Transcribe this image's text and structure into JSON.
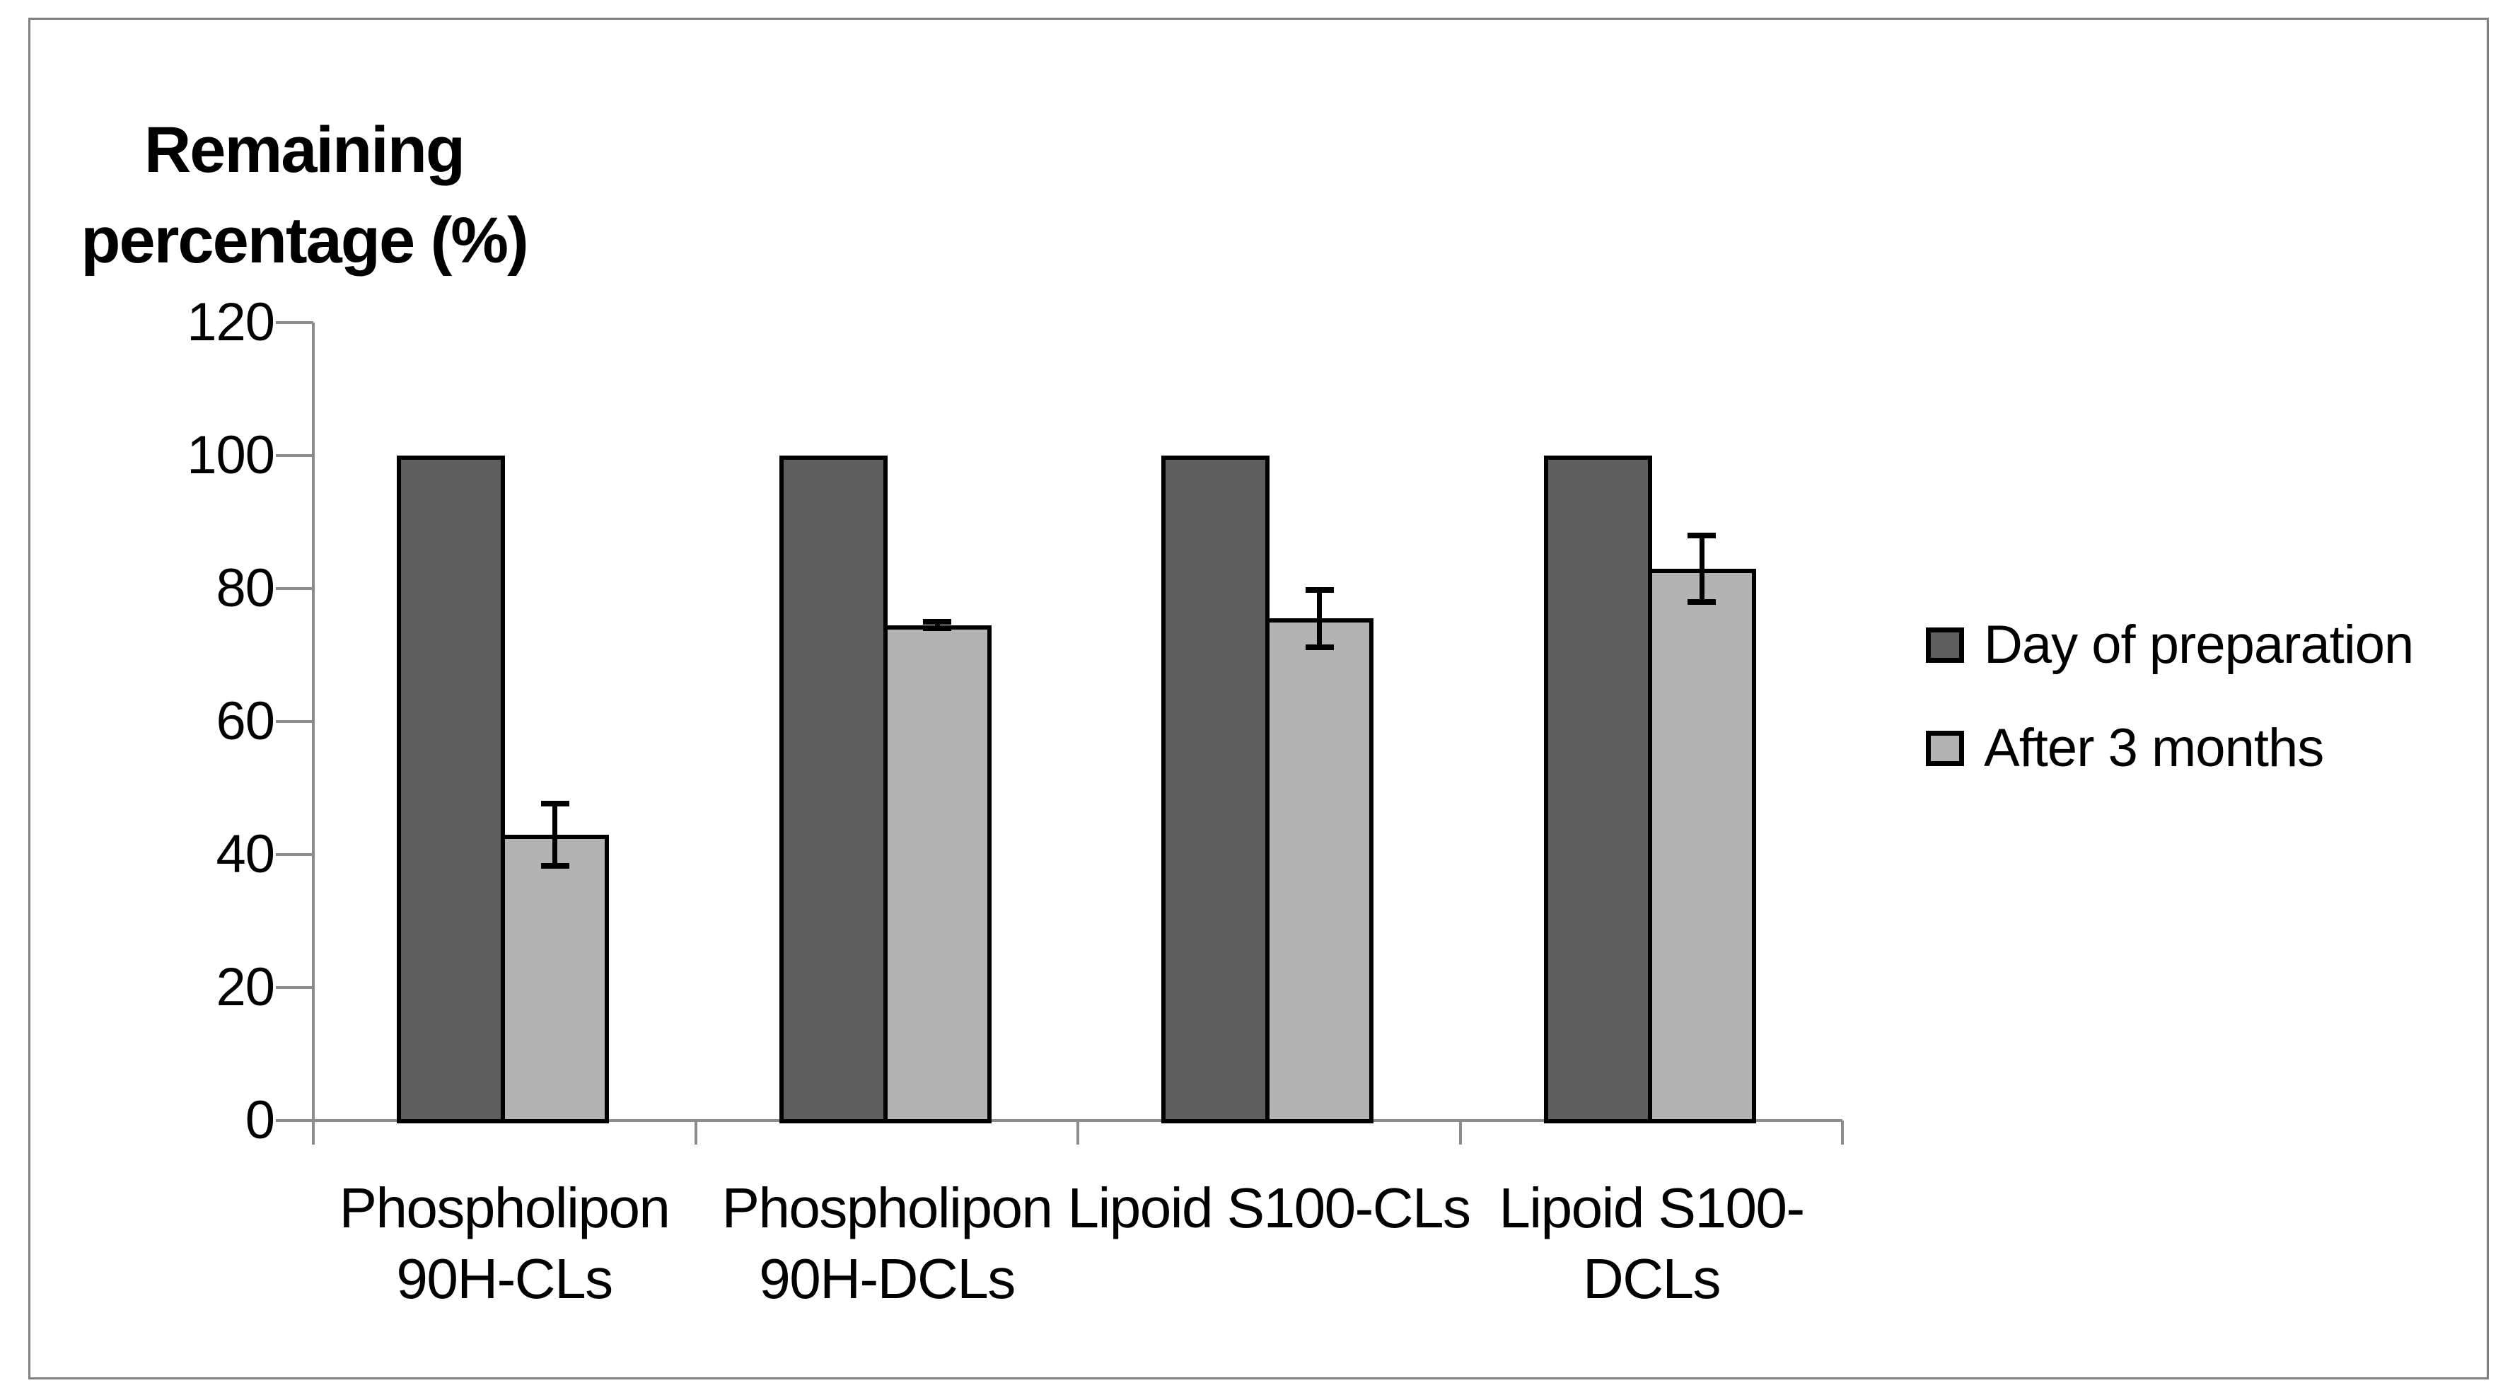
{
  "chart_data": {
    "type": "bar",
    "title": "Remaining percentage (%)",
    "title_lines": [
      "Remaining",
      "percentage (%)"
    ],
    "xlabel": "",
    "ylabel": "Remaining percentage (%)",
    "categories": [
      "Phospholipon 90H-CLs",
      "Phospholipon 90H-DCLs",
      "Lipoid S100-CLs",
      "Lipoid S100-DCLs"
    ],
    "category_label_lines": [
      [
        "Phospholipon",
        "90H-CLs"
      ],
      [
        "Phospholipon",
        "90H-DCLs"
      ],
      [
        "Lipoid S100-CLs"
      ],
      [
        "Lipoid S100-",
        "DCLs"
      ]
    ],
    "series": [
      {
        "name": "Day of preparation",
        "color": "#5e5e5e",
        "values": [
          100,
          100,
          100,
          100
        ],
        "errors": [
          0,
          0,
          0,
          0
        ]
      },
      {
        "name": "After 3 months",
        "color": "#b3b3b3",
        "values": [
          43,
          74.5,
          75.5,
          83
        ],
        "errors": [
          4.7,
          0.5,
          4.3,
          5
        ]
      }
    ],
    "ylim": [
      0,
      120
    ],
    "yticks": [
      0,
      20,
      40,
      60,
      80,
      100,
      120
    ],
    "grid": false,
    "legend_position": "right",
    "colors": {
      "axis": "#8c8c8c",
      "bar_border": "#000000",
      "error_bar": "#000000",
      "frame_border": "#7f7f7f",
      "background": "#ffffff",
      "text": "#000000"
    }
  }
}
